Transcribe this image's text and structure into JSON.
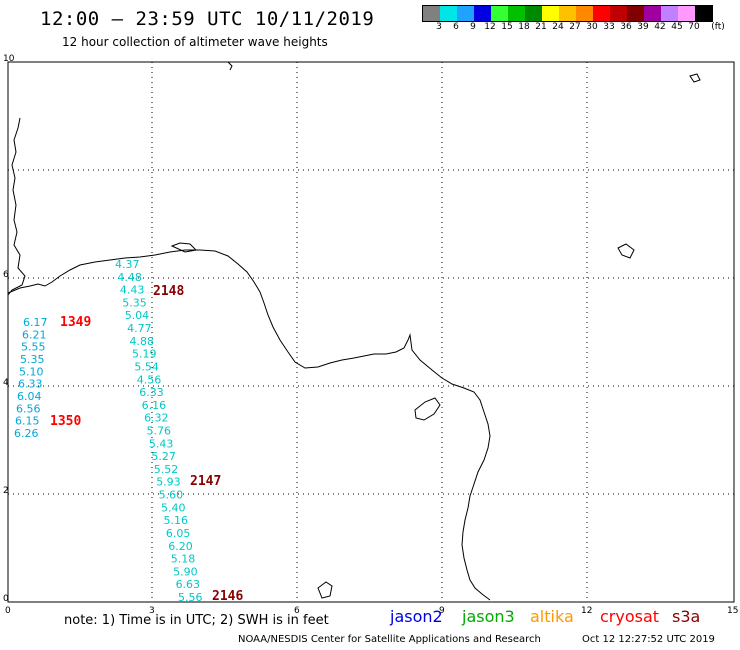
{
  "header": {
    "title": "12:00 – 23:59 UTC 10/11/2019",
    "subtitle": "12 hour collection of altimeter wave heights"
  },
  "legend": {
    "colors": [
      "#808080",
      "#00e5e5",
      "#1fa3ff",
      "#0000e0",
      "#33ff33",
      "#00c000",
      "#008800",
      "#ffff00",
      "#ffc000",
      "#ff8800",
      "#ff0000",
      "#c00000",
      "#800000",
      "#a000a0",
      "#c080ff",
      "#ff99ff",
      "#000000"
    ],
    "labels": [
      "3",
      "6",
      "9",
      "12",
      "15",
      "18",
      "21",
      "24",
      "27",
      "30",
      "33",
      "36",
      "39",
      "42",
      "45",
      "70"
    ],
    "unit": "(ft)"
  },
  "axes": {
    "x_ticks": [
      "0",
      "3",
      "6",
      "9",
      "12",
      "15"
    ],
    "y_ticks": [
      "0",
      "2",
      "4",
      "6",
      "10"
    ]
  },
  "cyan_track_a": {
    "color": "#00c8c8",
    "values": [
      "4.37",
      "4.48",
      "4.43",
      "5.35",
      "5.04",
      "4.77",
      "4.88",
      "5.19",
      "5.54",
      "4.56",
      "6.33",
      "6.16",
      "6.32",
      "5.76",
      "5.43",
      "5.27",
      "5.52",
      "5.93",
      "5.60",
      "5.40",
      "5.16",
      "6.05",
      "6.20",
      "5.18",
      "5.90",
      "6.63",
      "5.56"
    ]
  },
  "cyan_track_b": {
    "color": "#00a8d8",
    "values": [
      "6.17",
      "6.21",
      "5.55",
      "5.35",
      "5.10",
      "6.33",
      "6.04",
      "6.56",
      "6.15",
      "6.26"
    ]
  },
  "time_labels": [
    {
      "text": "2148",
      "color": "#8b0000"
    },
    {
      "text": "1349",
      "color": "#ff0000"
    },
    {
      "text": "1350",
      "color": "#ff0000"
    },
    {
      "text": "2147",
      "color": "#8b0000"
    },
    {
      "text": "2146",
      "color": "#8b0000"
    }
  ],
  "footer": {
    "note": "note:  1) Time is in UTC;  2) SWH is in feet",
    "satellites": [
      {
        "name": "jason2",
        "color": "#0000dd"
      },
      {
        "name": "jason3",
        "color": "#00aa00"
      },
      {
        "name": "altika",
        "color": "#ff9900"
      },
      {
        "name": "cryosat",
        "color": "#ff0000"
      },
      {
        "name": "s3a",
        "color": "#8b0000"
      }
    ],
    "credit": "NOAA/NESDIS Center for Satellite Applications and Research",
    "timestamp": "Oct 12 12:27:52 UTC 2019"
  }
}
